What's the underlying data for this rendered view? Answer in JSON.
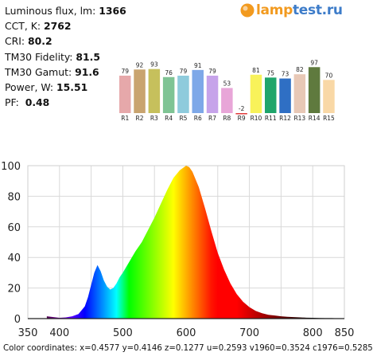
{
  "params": [
    {
      "label": "Luminous flux, lm:",
      "value": "1366"
    },
    {
      "label": "CCT, K:",
      "value": "2762"
    },
    {
      "label": "CRI:",
      "value": "80.2"
    },
    {
      "label": "TM30 Fidelity:",
      "value": "81.5"
    },
    {
      "label": "TM30 Gamut:",
      "value": "91.6"
    },
    {
      "label": "Power, W:",
      "value": "15.51"
    },
    {
      "label": "PF:",
      "value": "0.48"
    }
  ],
  "logo": {
    "part1": "lamp",
    "part2": "test.ru",
    "icon": "orange-sun-icon"
  },
  "footer": "Color coordinates: x=0.4577 y=0.4146 z=0.1277 u=0.2593 v1960=0.3524 c1976=0.5285",
  "chart_data": [
    {
      "type": "bar",
      "categories": [
        "R1",
        "R2",
        "R3",
        "R4",
        "R5",
        "R6",
        "R7",
        "R8",
        "R9",
        "R10",
        "R11",
        "R12",
        "R13",
        "R14",
        "R15"
      ],
      "values": [
        79,
        92,
        93,
        76,
        79,
        91,
        79,
        53,
        -2,
        81,
        75,
        73,
        82,
        97,
        70
      ],
      "colors": [
        "#e6a8aa",
        "#c9a46f",
        "#c6c05c",
        "#7fc494",
        "#8ecbdc",
        "#7ea8e8",
        "#c6a3ea",
        "#e8a6d8",
        "#e03a3a",
        "#f8f25a",
        "#1fa56b",
        "#2f6fc4",
        "#e8c8b6",
        "#5f7a3e",
        "#f9d8a6"
      ],
      "ylim": [
        -2,
        100
      ]
    },
    {
      "type": "area",
      "title": "",
      "xlabel": "",
      "ylabel": "",
      "xlim": [
        350,
        850
      ],
      "ylim": [
        0,
        100
      ],
      "xticks": [
        350,
        400,
        500,
        600,
        700,
        800,
        850
      ],
      "yticks": [
        0,
        20,
        40,
        60,
        80,
        100
      ],
      "grid": true,
      "x": [
        380,
        400,
        410,
        420,
        430,
        440,
        445,
        450,
        455,
        460,
        465,
        470,
        475,
        480,
        485,
        490,
        495,
        500,
        510,
        520,
        530,
        540,
        550,
        560,
        570,
        580,
        590,
        600,
        605,
        610,
        620,
        630,
        640,
        650,
        660,
        670,
        680,
        690,
        700,
        710,
        720,
        730,
        740,
        750,
        760,
        770,
        780,
        790,
        800,
        810,
        820,
        830,
        840,
        850
      ],
      "values": [
        1.5,
        0.5,
        0.8,
        1.5,
        3,
        8,
        14,
        22,
        30,
        35,
        31,
        25,
        21,
        19,
        20,
        23,
        27,
        30,
        37,
        44,
        50,
        58,
        66,
        75,
        84,
        92,
        97,
        100,
        99,
        96,
        86,
        72,
        57,
        43,
        32,
        23,
        16,
        11,
        7.5,
        5,
        3.5,
        2.5,
        2,
        1.5,
        1.2,
        1,
        0.8,
        0.6,
        0.5,
        0.4,
        0.3,
        0.3,
        0.2,
        0.2
      ]
    }
  ]
}
